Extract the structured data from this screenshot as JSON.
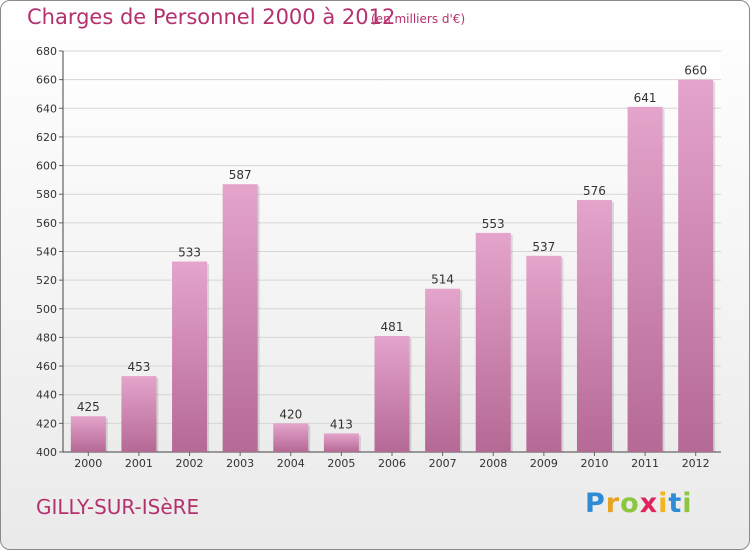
{
  "header": {
    "title": "Charges de Personnel 2000 à 2012",
    "subtitle": "(en milliers d'€)"
  },
  "footer": {
    "city": "GILLY-SUR-ISèRE",
    "brand_letters": [
      {
        "ch": "P",
        "color": "#2e8bd6"
      },
      {
        "ch": "r",
        "color": "#e8a322"
      },
      {
        "ch": "o",
        "color": "#8cc63e"
      },
      {
        "ch": "x",
        "color": "#e0245c"
      },
      {
        "ch": "i",
        "color": "#f2b51e"
      },
      {
        "ch": "t",
        "color": "#2e8bd6"
      },
      {
        "ch": "i",
        "color": "#8cc63e"
      }
    ]
  },
  "colors": {
    "accent": "#b5316e",
    "bar_top": "#e4a4cb",
    "bar_bottom": "#b56995"
  },
  "chart_data": {
    "type": "bar",
    "title": "Charges de Personnel 2000 à 2012",
    "subtitle": "(en milliers d'€)",
    "categories": [
      "2000",
      "2001",
      "2002",
      "2003",
      "2004",
      "2005",
      "2006",
      "2007",
      "2008",
      "2009",
      "2010",
      "2011",
      "2012"
    ],
    "values": [
      425,
      453,
      533,
      587,
      420,
      413,
      481,
      514,
      553,
      537,
      576,
      641,
      660
    ],
    "ylim": [
      400,
      680
    ],
    "yticks": [
      400,
      420,
      440,
      460,
      480,
      500,
      520,
      540,
      560,
      580,
      600,
      620,
      640,
      660,
      680
    ],
    "grid": true,
    "data_labels": true
  }
}
